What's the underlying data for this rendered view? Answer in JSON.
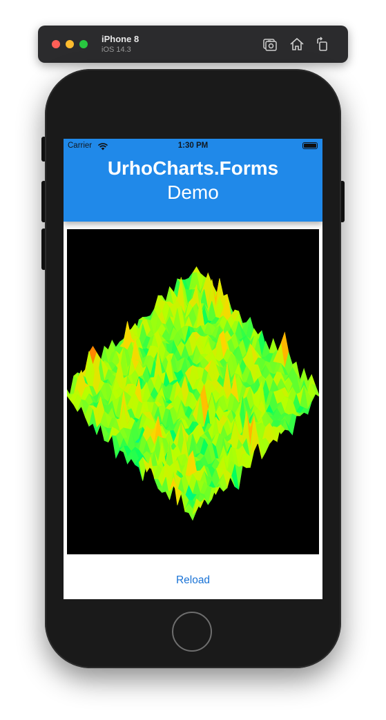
{
  "simulator": {
    "device_name": "iPhone 8",
    "os_version": "iOS 14.3",
    "icons": [
      "screenshot-icon",
      "home-icon",
      "rotate-icon"
    ]
  },
  "status_bar": {
    "carrier": "Carrier",
    "time": "1:30 PM"
  },
  "nav": {
    "title": "UrhoCharts.Forms",
    "subtitle": "Demo",
    "background_color": "#2089e9"
  },
  "chart_view": {
    "description_type": "3d-surface",
    "background_color": "#000000",
    "colormap": [
      "#1e40ff",
      "#00e5ff",
      "#00ff60",
      "#b8ff00",
      "#ffd400",
      "#ff2a00",
      "#ff00c8"
    ]
  },
  "actions": {
    "reload_label": "Reload",
    "accent_color": "#1a73d6"
  }
}
